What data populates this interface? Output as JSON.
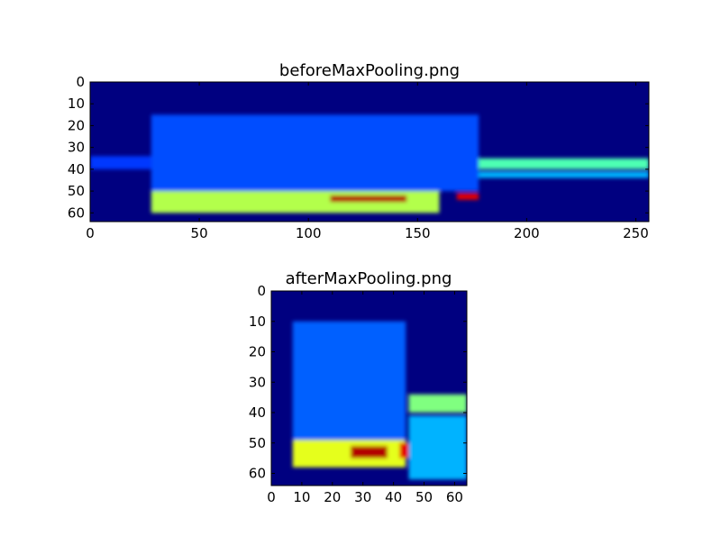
{
  "chart_data": [
    {
      "type": "heatmap",
      "title": "beforeMaxPooling.png",
      "xlabel": "",
      "ylabel": "",
      "xlim": [
        0,
        256
      ],
      "ylim": [
        64,
        0
      ],
      "xticks": [
        0,
        50,
        100,
        150,
        200,
        250
      ],
      "yticks": [
        0,
        10,
        20,
        30,
        40,
        50,
        60
      ],
      "xtick_labels": [
        "0",
        "50",
        "100",
        "150",
        "200",
        "250"
      ],
      "ytick_labels": [
        "0",
        "10",
        "20",
        "30",
        "40",
        "50",
        "60"
      ],
      "colormap": "jet",
      "grid": false,
      "features": [
        {
          "x": [
            28,
            160
          ],
          "y": [
            50,
            60
          ],
          "level": 0.55
        },
        {
          "x": [
            110,
            145
          ],
          "y": [
            52,
            55
          ],
          "level": 0.95
        },
        {
          "x": [
            168,
            178
          ],
          "y": [
            51,
            54
          ],
          "level": 0.9
        },
        {
          "x": [
            178,
            256
          ],
          "y": [
            35,
            40
          ],
          "level": 0.45
        },
        {
          "x": [
            178,
            256
          ],
          "y": [
            41,
            44
          ],
          "level": 0.3
        },
        {
          "x": [
            28,
            178
          ],
          "y": [
            15,
            50
          ],
          "level": 0.2
        },
        {
          "x": [
            0,
            28
          ],
          "y": [
            34,
            40
          ],
          "level": 0.18
        }
      ]
    },
    {
      "type": "heatmap",
      "title": "afterMaxPooling.png",
      "xlabel": "",
      "ylabel": "",
      "xlim": [
        0,
        64
      ],
      "ylim": [
        64,
        0
      ],
      "xticks": [
        0,
        10,
        20,
        30,
        40,
        50,
        60
      ],
      "yticks": [
        0,
        10,
        20,
        30,
        40,
        50,
        60
      ],
      "xtick_labels": [
        "0",
        "10",
        "20",
        "30",
        "40",
        "50",
        "60"
      ],
      "ytick_labels": [
        "0",
        "10",
        "20",
        "30",
        "40",
        "50",
        "60"
      ],
      "colormap": "jet",
      "grid": false,
      "features": [
        {
          "x": [
            7,
            44
          ],
          "y": [
            49,
            58
          ],
          "level": 0.6
        },
        {
          "x": [
            26,
            38
          ],
          "y": [
            51,
            55
          ],
          "level": 0.95
        },
        {
          "x": [
            42,
            45
          ],
          "y": [
            50,
            55
          ],
          "level": 0.9
        },
        {
          "x": [
            45,
            64
          ],
          "y": [
            34,
            40
          ],
          "level": 0.5
        },
        {
          "x": [
            45,
            64
          ],
          "y": [
            41,
            62
          ],
          "level": 0.3
        },
        {
          "x": [
            7,
            44
          ],
          "y": [
            10,
            49
          ],
          "level": 0.22
        }
      ]
    }
  ]
}
